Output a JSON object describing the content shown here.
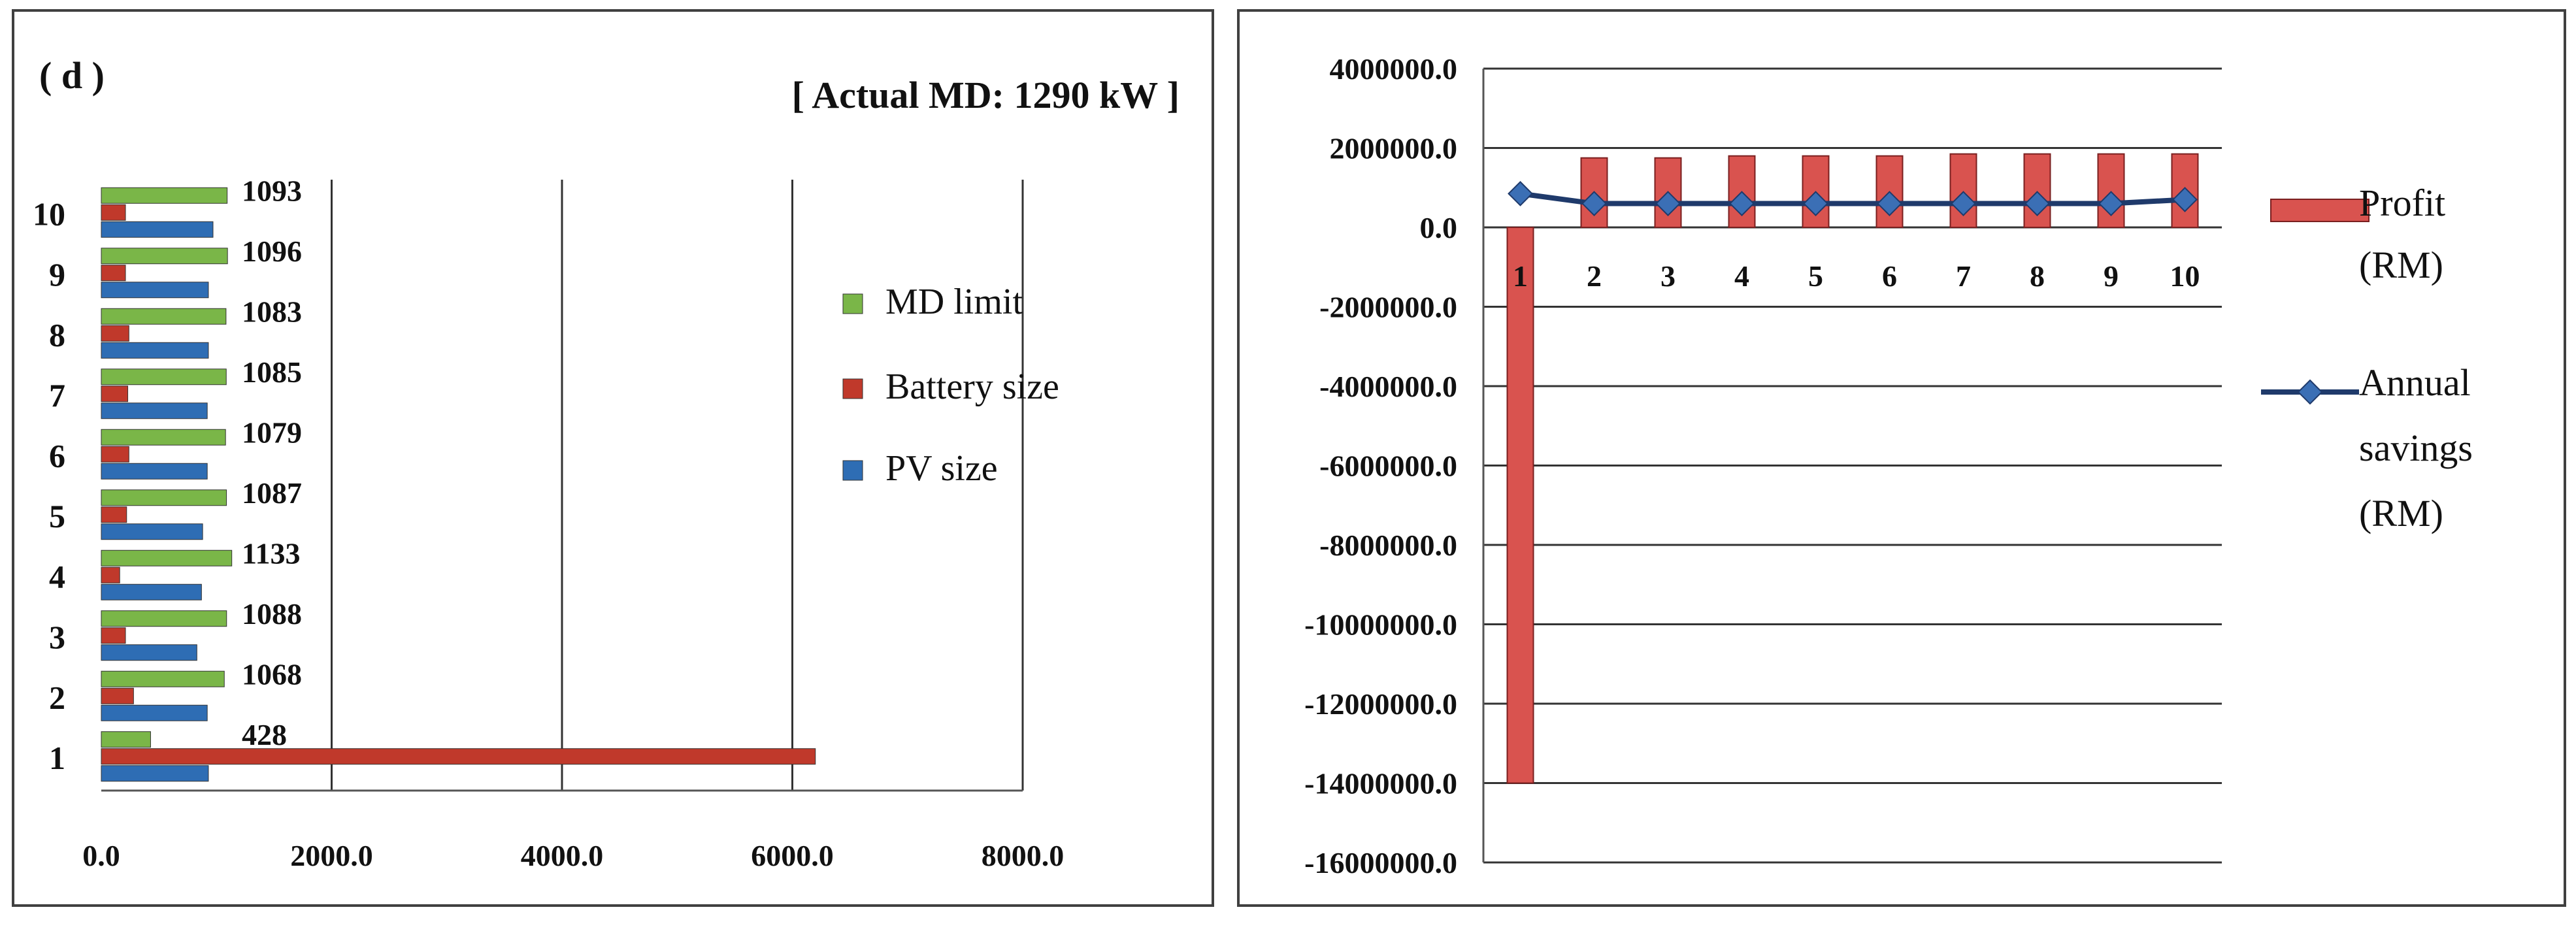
{
  "chart_data": [
    {
      "type": "bar",
      "orientation": "horizontal",
      "panel_label": "( d )",
      "annotation": "[ Actual MD: 1290 kW ]",
      "categories": [
        "1",
        "2",
        "3",
        "4",
        "5",
        "6",
        "7",
        "8",
        "9",
        "10"
      ],
      "series": [
        {
          "name": "MD limit",
          "color": "#7ab648",
          "values": [
            428,
            1068,
            1088,
            1133,
            1087,
            1079,
            1085,
            1083,
            1096,
            1093
          ]
        },
        {
          "name": "Battery size",
          "color": "#c0392b",
          "values": [
            6200,
            280,
            210,
            160,
            220,
            240,
            230,
            240,
            210,
            210
          ]
        },
        {
          "name": "PV size",
          "color": "#2e6db4",
          "values": [
            930,
            920,
            830,
            870,
            880,
            920,
            920,
            930,
            930,
            970
          ]
        }
      ],
      "data_labels": [
        "428",
        "1068",
        "1088",
        "1133",
        "1087",
        "1079",
        "1085",
        "1083",
        "1096",
        "1093"
      ],
      "xlim": [
        0,
        8000
      ],
      "xticks": [
        "0.0",
        "2000.0",
        "4000.0",
        "6000.0",
        "8000.0"
      ],
      "grid": true,
      "legend_position": "right"
    },
    {
      "type": "bar",
      "categories": [
        "1",
        "2",
        "3",
        "4",
        "5",
        "6",
        "7",
        "8",
        "9",
        "10"
      ],
      "series": [
        {
          "name": "Profit (RM)",
          "type": "bar",
          "color": "#d9534f",
          "values": [
            -14000000,
            1750000,
            1750000,
            1800000,
            1800000,
            1800000,
            1850000,
            1850000,
            1850000,
            1850000
          ]
        },
        {
          "name": "Annual savings (RM)",
          "type": "line",
          "color": "#1f3a6b",
          "values": [
            850000,
            600000,
            600000,
            600000,
            600000,
            600000,
            600000,
            600000,
            600000,
            700000
          ]
        }
      ],
      "ylim": [
        -16000000,
        4000000
      ],
      "yticks": [
        "4000000.0",
        "2000000.0",
        "0.0",
        "-2000000.0",
        "-4000000.0",
        "-6000000.0",
        "-8000000.0",
        "-10000000.0",
        "-12000000.0",
        "-14000000.0",
        "-16000000.0"
      ],
      "legend": {
        "profit_lines": [
          "Profit",
          "(RM)"
        ],
        "savings_lines": [
          "Annual",
          "savings",
          "(RM)"
        ]
      },
      "grid": true,
      "legend_position": "right"
    }
  ]
}
